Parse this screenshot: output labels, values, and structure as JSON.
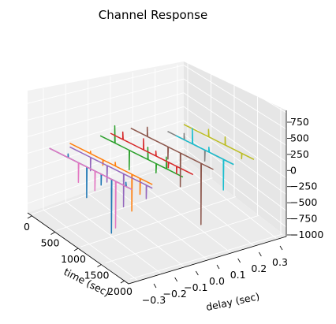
{
  "chart_data": {
    "type": "line",
    "projection": "3d",
    "title": "Channel Response",
    "xlabel": "time (sec)",
    "ylabel": "delay (sec)",
    "zlabel": "",
    "x_ticks": [
      "0",
      "500",
      "1000",
      "1500",
      "2000"
    ],
    "y_ticks": [
      "−0.3",
      "−0.2",
      "−0.1",
      "0.0",
      "0.1",
      "0.2",
      "0.3"
    ],
    "z_ticks": [
      "−1000",
      "−750",
      "−500",
      "−250",
      "0",
      "250",
      "500",
      "750"
    ],
    "xlim": [
      0,
      2100
    ],
    "ylim": [
      -0.33,
      0.33
    ],
    "zlim": [
      -1000,
      900
    ],
    "grid": true,
    "colors": [
      "#1f77b4",
      "#ff7f0e",
      "#2ca02c",
      "#d62728",
      "#9467bd",
      "#8c564b",
      "#e377c2",
      "#7f7f7f",
      "#bcbd22",
      "#17becf"
    ],
    "series": [
      {
        "delay": -0.3,
        "t_start": 0,
        "t_end": 2000,
        "base": 0,
        "spikes": [
          [
            450,
            60
          ],
          [
            900,
            -500
          ],
          [
            1250,
            -180
          ],
          [
            1500,
            -880
          ],
          [
            1850,
            70
          ]
        ]
      },
      {
        "delay": -0.2,
        "t_start": 0,
        "t_end": 2000,
        "base": 0,
        "spikes": [
          [
            500,
            40
          ],
          [
            800,
            -90
          ],
          [
            1100,
            60
          ],
          [
            1500,
            -600
          ],
          [
            1700,
            -260
          ]
        ]
      },
      {
        "delay": -0.05,
        "t_start": 0,
        "t_end": 2000,
        "base": 0,
        "spikes": [
          [
            350,
            280
          ],
          [
            700,
            -320
          ],
          [
            1150,
            200
          ],
          [
            1350,
            -150
          ],
          [
            1600,
            190
          ]
        ]
      },
      {
        "delay": 0.0,
        "t_start": 0,
        "t_end": 2000,
        "base": 0,
        "spikes": [
          [
            300,
            120
          ],
          [
            800,
            180
          ],
          [
            1100,
            80
          ],
          [
            1400,
            -90
          ],
          [
            1600,
            -120
          ]
        ]
      },
      {
        "delay": -0.2,
        "t_start": 0,
        "t_end": 2000,
        "base": -60,
        "spikes": [
          [
            500,
            -280
          ],
          [
            900,
            -330
          ],
          [
            1300,
            -600
          ],
          [
            1850,
            -280
          ]
        ]
      },
      {
        "delay": 0.1,
        "t_start": 0,
        "t_end": 2000,
        "base": 0,
        "spikes": [
          [
            400,
            150
          ],
          [
            900,
            -200
          ],
          [
            1200,
            -550
          ],
          [
            1700,
            -1000
          ]
        ]
      },
      {
        "delay": -0.3,
        "t_start": 0,
        "t_end": 2000,
        "base": 0,
        "spikes": [
          [
            700,
            -320
          ],
          [
            1100,
            -320
          ],
          [
            1600,
            -760
          ]
        ]
      },
      {
        "delay": 0.2,
        "t_start": 400,
        "t_end": 2000,
        "base": 0,
        "spikes": [
          [
            800,
            100
          ],
          [
            1300,
            -180
          ]
        ]
      },
      {
        "delay": 0.3,
        "t_start": 300,
        "t_end": 2000,
        "base": 0,
        "spikes": [
          [
            900,
            120
          ],
          [
            1300,
            130
          ],
          [
            1700,
            -90
          ]
        ]
      },
      {
        "delay": 0.2,
        "t_start": 600,
        "t_end": 2000,
        "base": 0,
        "spikes": [
          [
            1000,
            250
          ],
          [
            1400,
            80
          ],
          [
            1750,
            -500
          ]
        ]
      }
    ]
  }
}
